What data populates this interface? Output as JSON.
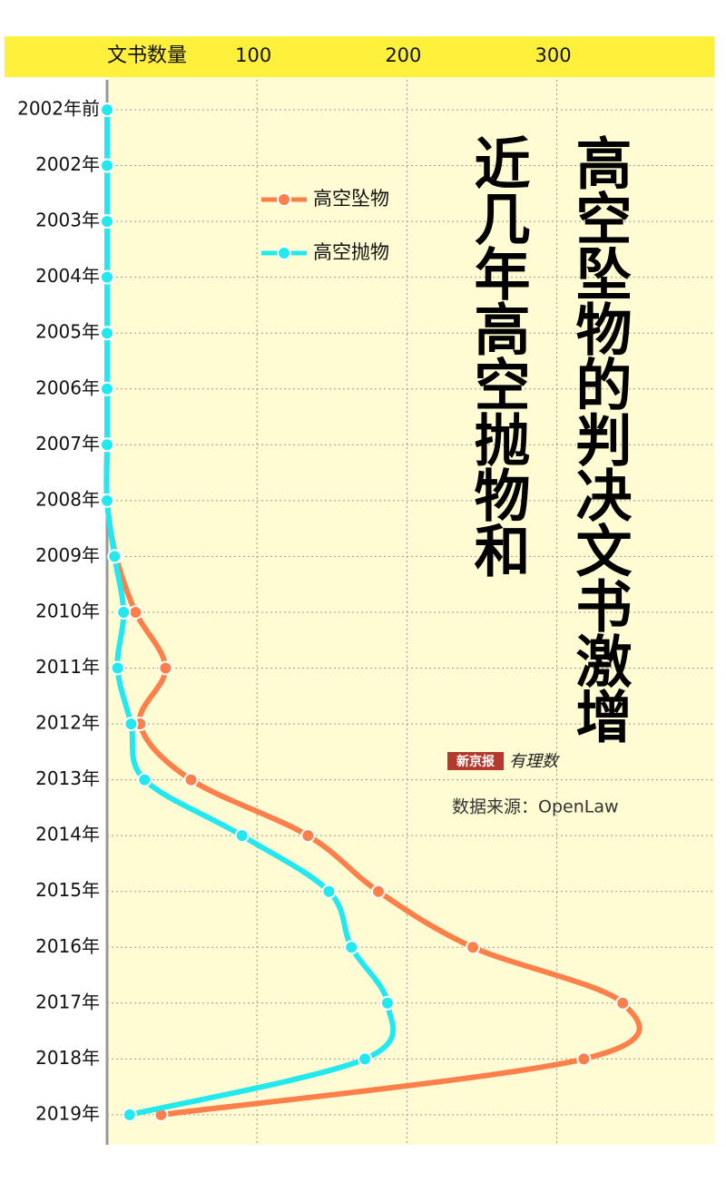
{
  "chart_data": {
    "type": "line",
    "orientation": "horizontal",
    "title_lines": [
      "近几年高空抛物和",
      "高空坠物的判决文书激增"
    ],
    "x_label": "文书数量",
    "source": "数据来源：OpenLaw",
    "logo": [
      "新京报",
      "有理数"
    ],
    "categories": [
      "2002年前",
      "2002年",
      "2003年",
      "2004年",
      "2005年",
      "2006年",
      "2007年",
      "2008年",
      "2009年",
      "2010年",
      "2011年",
      "2012年",
      "2013年",
      "2014年",
      "2015年",
      "2016年",
      "2017年",
      "2018年",
      "2019年"
    ],
    "xlim": [
      0,
      405
    ],
    "xticks": [
      100,
      200,
      300
    ],
    "grid": true,
    "series": [
      {
        "name": "高空坠物",
        "color": "#ff7f4a",
        "values": [
          0,
          0,
          0,
          0,
          0,
          0,
          0,
          0,
          6,
          19,
          39,
          22,
          56,
          134,
          181,
          244,
          344,
          318,
          36
        ]
      },
      {
        "name": "高空抛物",
        "color": "#22e8f0",
        "values": [
          0,
          0,
          0,
          0,
          0,
          0,
          0,
          0,
          5,
          11,
          7,
          16,
          25,
          90,
          148,
          163,
          187,
          172,
          15
        ]
      }
    ]
  }
}
